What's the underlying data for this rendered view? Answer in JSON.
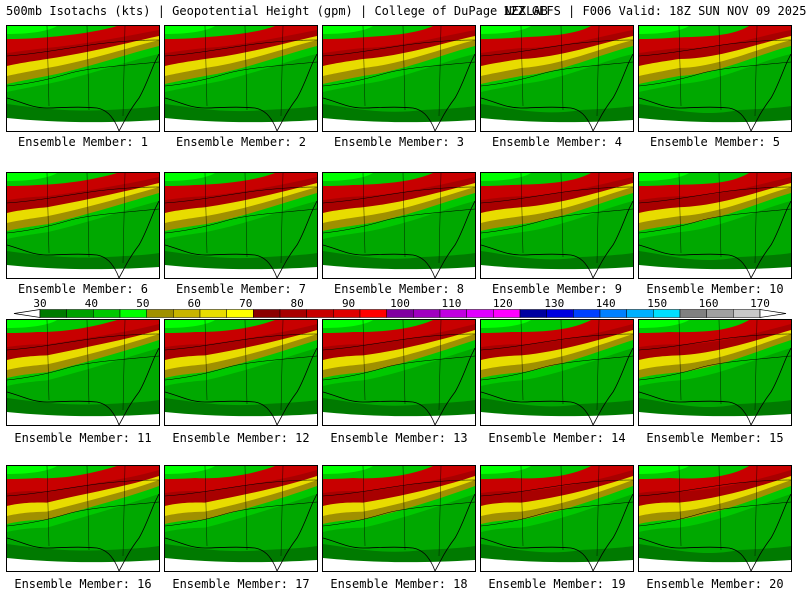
{
  "header": {
    "title_left": "500mb Isotachs (kts) | Geopotential Height (gpm) | College of DuPage NEXLAB",
    "title_right": "12Z GEFS | F006 Valid: 18Z SUN NOV 09 2025"
  },
  "panels": [
    {
      "label": "Ensemble Member: 1"
    },
    {
      "label": "Ensemble Member: 2"
    },
    {
      "label": "Ensemble Member: 3"
    },
    {
      "label": "Ensemble Member: 4"
    },
    {
      "label": "Ensemble Member: 5"
    },
    {
      "label": "Ensemble Member: 6"
    },
    {
      "label": "Ensemble Member: 7"
    },
    {
      "label": "Ensemble Member: 8"
    },
    {
      "label": "Ensemble Member: 9"
    },
    {
      "label": "Ensemble Member: 10"
    },
    {
      "label": "Ensemble Member: 11"
    },
    {
      "label": "Ensemble Member: 12"
    },
    {
      "label": "Ensemble Member: 13"
    },
    {
      "label": "Ensemble Member: 14"
    },
    {
      "label": "Ensemble Member: 15"
    },
    {
      "label": "Ensemble Member: 16"
    },
    {
      "label": "Ensemble Member: 17"
    },
    {
      "label": "Ensemble Member: 18"
    },
    {
      "label": "Ensemble Member: 19"
    },
    {
      "label": "Ensemble Member: 20"
    }
  ],
  "colorbar": {
    "labels": [
      "30",
      "40",
      "50",
      "60",
      "70",
      "80",
      "90",
      "100",
      "110",
      "120",
      "130",
      "140",
      "150",
      "160",
      "170"
    ],
    "colors": [
      "#007a00",
      "#00a000",
      "#00c800",
      "#00ff00",
      "#a09000",
      "#c8b400",
      "#e8dc00",
      "#ffff00",
      "#8b0000",
      "#a80000",
      "#c80000",
      "#e00000",
      "#ff0000",
      "#8000a0",
      "#a000c0",
      "#c000e0",
      "#e000ff",
      "#ff00ff",
      "#0000a0",
      "#0000e0",
      "#0040ff",
      "#0080ff",
      "#00b0ff",
      "#00e0ff",
      "#808080",
      "#a0a0a0",
      "#c8c8c8"
    ]
  }
}
